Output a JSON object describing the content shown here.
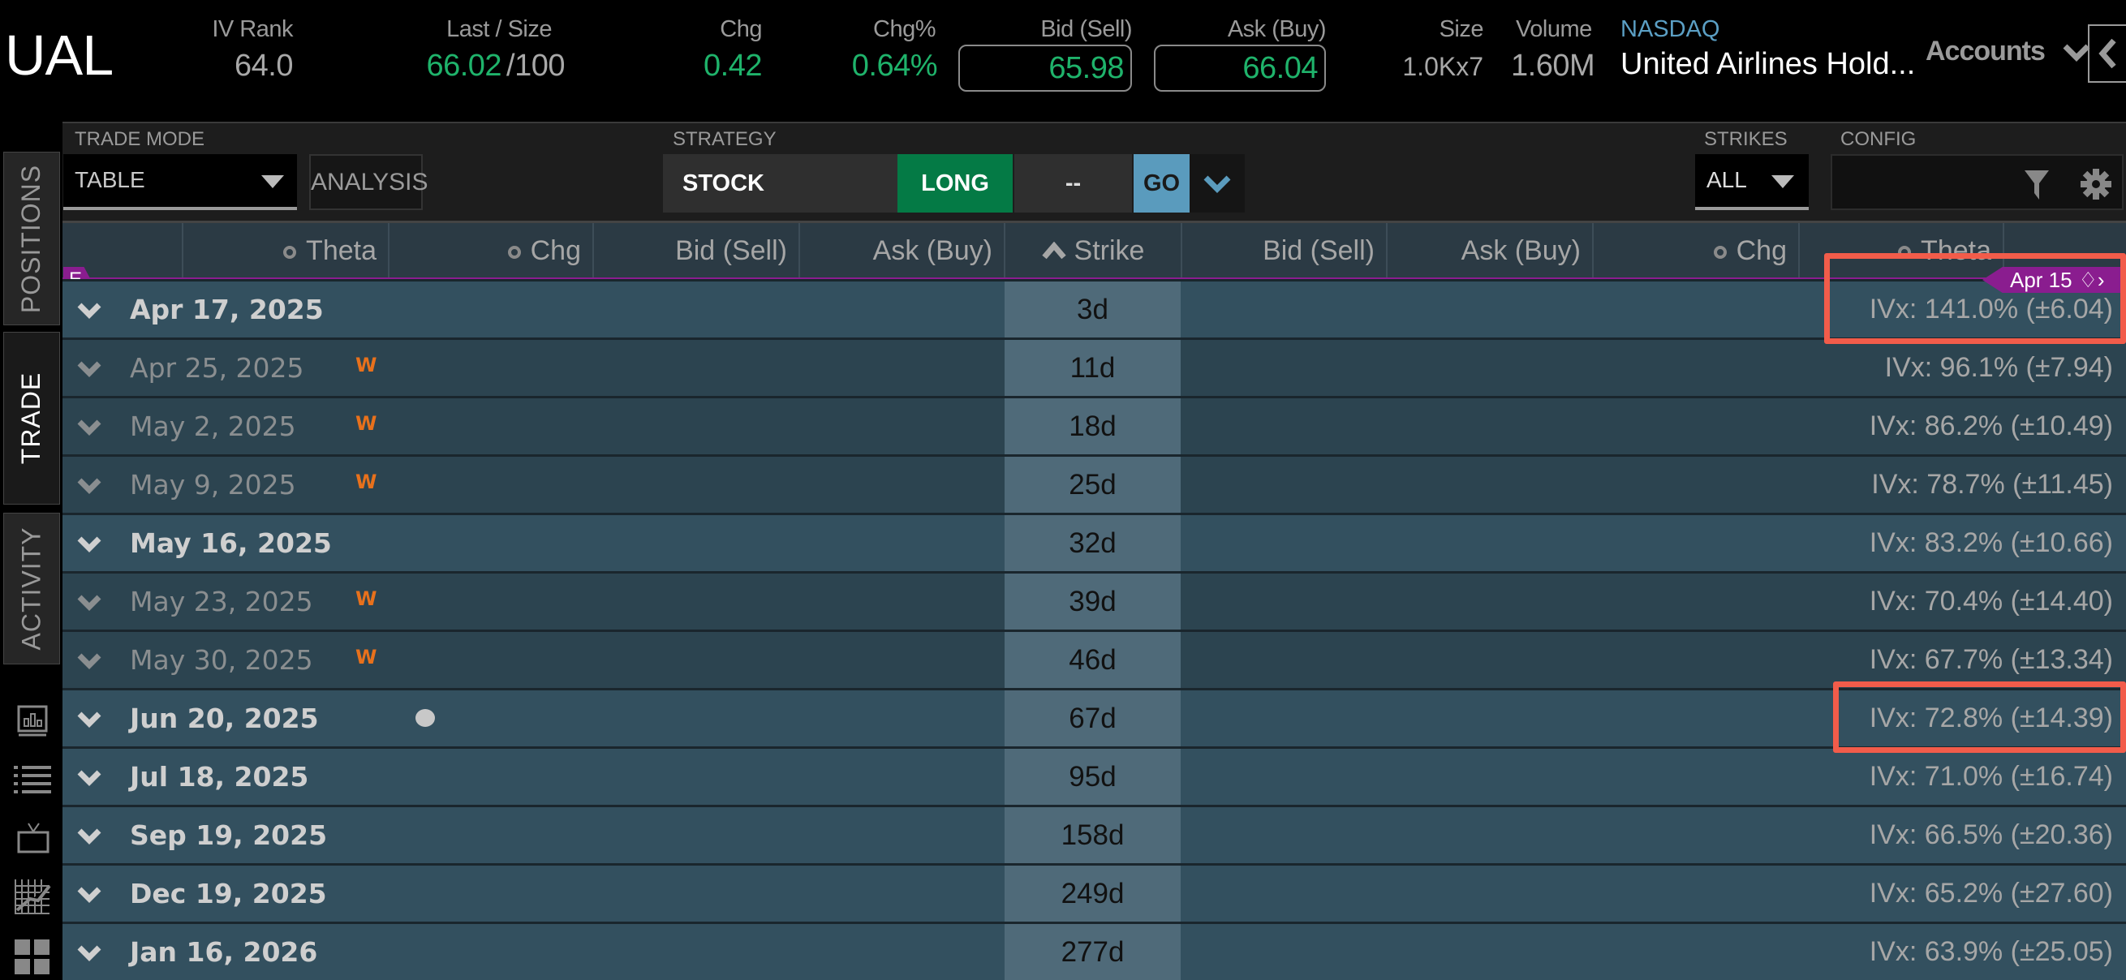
{
  "header": {
    "symbol": "UAL",
    "iv_rank_label": "IV Rank",
    "iv_rank": "64.0",
    "last_size_label": "Last / Size",
    "last": "66.02",
    "size_sep": "/100",
    "chg_label": "Chg",
    "chg": "0.42",
    "chg_pct_label": "Chg%",
    "chg_pct": "0.64%",
    "bid_label": "Bid (Sell)",
    "bid": "65.98",
    "ask_label": "Ask (Buy)",
    "ask": "66.04",
    "size_label": "Size",
    "size": "1.0Kx7",
    "volume_label": "Volume",
    "volume": "1.60M",
    "exchange": "NASDAQ",
    "company": "United Airlines Hold...",
    "accounts": "Accounts"
  },
  "sidebar": {
    "tabs": [
      "POSITIONS",
      "TRADE",
      "ACTIVITY"
    ],
    "active": "TRADE",
    "icons": [
      "chart-book-icon",
      "list-icon",
      "tv-icon",
      "grid-chart-icon",
      "tiles-icon"
    ]
  },
  "toolbar": {
    "trade_mode_label": "TRADE MODE",
    "trade_mode": "TABLE",
    "analysis": "ANALYSIS",
    "strategy_label": "STRATEGY",
    "strategy": "STOCK",
    "side": "LONG",
    "qty": "--",
    "go": "GO",
    "strikes_label": "STRIKES",
    "strikes": "ALL",
    "config_label": "CONFIG"
  },
  "columns": {
    "left": [
      "Theta",
      "Chg",
      "Bid (Sell)",
      "Ask (Buy)"
    ],
    "strike": "Strike",
    "right": [
      "Bid (Sell)",
      "Ask (Buy)",
      "Chg",
      "Theta"
    ]
  },
  "markers": {
    "earnings": "E",
    "earnings_date": "Apr 15"
  },
  "colors": {
    "green": "#1fb36b",
    "orange": "#e8711c",
    "purple": "#8a1d8f",
    "highlight": "#f25c4a",
    "go": "#5a9bbd"
  },
  "expirations": [
    {
      "date": "Apr 17, 2025",
      "dte": "3d",
      "ivx": "IVx: 141.0% (±6.04)",
      "weekly": false,
      "highlight": true
    },
    {
      "date": "Apr 25, 2025",
      "dte": "11d",
      "ivx": "IVx: 96.1% (±7.94)",
      "weekly": true
    },
    {
      "date": "May 2, 2025",
      "dte": "18d",
      "ivx": "IVx: 86.2% (±10.49)",
      "weekly": true
    },
    {
      "date": "May 9, 2025",
      "dte": "25d",
      "ivx": "IVx: 78.7% (±11.45)",
      "weekly": true
    },
    {
      "date": "May 16, 2025",
      "dte": "32d",
      "ivx": "IVx: 83.2% (±10.66)",
      "weekly": false
    },
    {
      "date": "May 23, 2025",
      "dte": "39d",
      "ivx": "IVx: 70.4% (±14.40)",
      "weekly": true
    },
    {
      "date": "May 30, 2025",
      "dte": "46d",
      "ivx": "IVx: 67.7% (±13.34)",
      "weekly": true
    },
    {
      "date": "Jun 20, 2025",
      "dte": "67d",
      "ivx": "IVx: 72.8% (±14.39)",
      "weekly": false,
      "dot": true,
      "highlight": true
    },
    {
      "date": "Jul 18, 2025",
      "dte": "95d",
      "ivx": "IVx: 71.0% (±16.74)",
      "weekly": false
    },
    {
      "date": "Sep 19, 2025",
      "dte": "158d",
      "ivx": "IVx: 66.5% (±20.36)",
      "weekly": false
    },
    {
      "date": "Dec 19, 2025",
      "dte": "249d",
      "ivx": "IVx: 65.2% (±27.60)",
      "weekly": false
    },
    {
      "date": "Jan 16, 2026",
      "dte": "277d",
      "ivx": "IVx: 63.9% (±25.05)",
      "weekly": false
    }
  ],
  "weekly_badge": "W"
}
